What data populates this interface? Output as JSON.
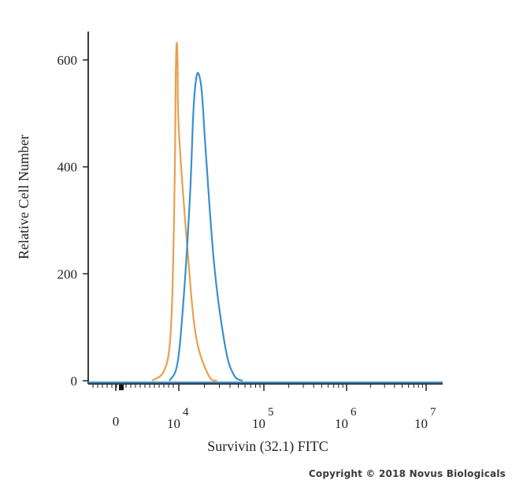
{
  "chart_data": {
    "type": "line",
    "xlabel": "Survivin (32.1) FITC",
    "ylabel": "Relative Cell Number",
    "ylim": [
      0,
      650
    ],
    "yticks": [
      0,
      200,
      400,
      600
    ],
    "x_scale": "biexponential",
    "xticks": [
      {
        "base": "0",
        "exp": ""
      },
      {
        "base": "10",
        "exp": "4"
      },
      {
        "base": "10",
        "exp": "5"
      },
      {
        "base": "10",
        "exp": "6"
      },
      {
        "base": "10",
        "exp": "7"
      }
    ],
    "series": [
      {
        "color": "#e8a04c",
        "x": [
          3.15,
          3.5,
          3.7,
          3.8,
          3.87,
          3.9,
          3.93,
          3.96,
          4.0,
          4.1,
          4.2,
          4.35,
          4.45
        ],
        "y": [
          0,
          15,
          60,
          170,
          380,
          560,
          630,
          600,
          470,
          250,
          85,
          10,
          0
        ]
      },
      {
        "color": "#3a8fd1",
        "x": [
          3.7,
          3.95,
          4.05,
          4.13,
          4.17,
          4.2,
          4.23,
          4.27,
          4.32,
          4.42,
          4.55,
          4.65,
          4.75
        ],
        "y": [
          0,
          30,
          140,
          340,
          500,
          560,
          575,
          540,
          420,
          210,
          60,
          10,
          0
        ]
      }
    ]
  },
  "copyright": "Copyright © 2018 Novus Biologicals"
}
